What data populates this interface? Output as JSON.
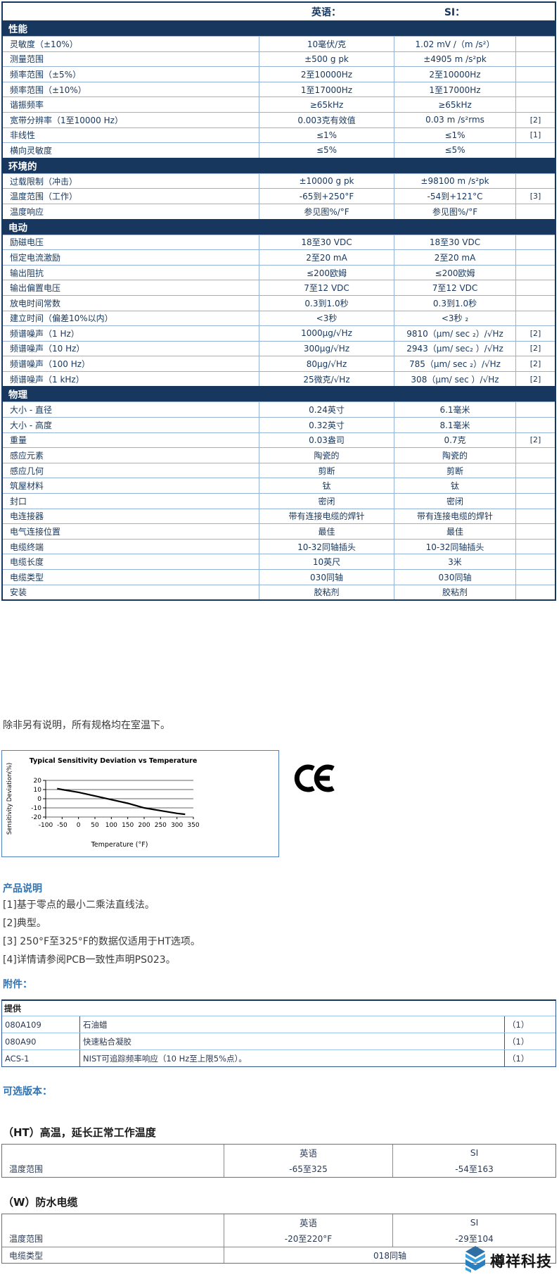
{
  "spec_table": {
    "col_headers": {
      "english": "英语：",
      "si": "SI："
    },
    "sections": [
      {
        "title": "性能",
        "rows": [
          {
            "label": "灵敏度（±10%）",
            "en": "10毫伏/克",
            "si": "1.02 mV /（m /s²）",
            "note": ""
          },
          {
            "label": "测量范围",
            "en": "±500 g pk",
            "si": "±4905 m /s²pk",
            "note": ""
          },
          {
            "label": "频率范围（±5%）",
            "en": "2至10000Hz",
            "si": "2至10000Hz",
            "note": ""
          },
          {
            "label": "频率范围（±10%）",
            "en": "1至17000Hz",
            "si": "1至17000Hz",
            "note": ""
          },
          {
            "label": "谐振频率",
            "en": "≥65kHz",
            "si": "≥65kHz",
            "note": ""
          },
          {
            "label": "宽带分辨率（1至10000 Hz）",
            "en": "0.003克有效值",
            "si": "0.03 m /s²rms",
            "note": "[2]"
          },
          {
            "label": "非线性",
            "en": "≤1%",
            "si": "≤1%",
            "note": "[1]"
          },
          {
            "label": "横向灵敏度",
            "en": "≤5%",
            "si": "≤5%",
            "note": ""
          }
        ]
      },
      {
        "title": "环境的",
        "rows": [
          {
            "label": "过载限制（冲击）",
            "en": "±10000 g pk",
            "si": "±98100 m /s²pk",
            "note": ""
          },
          {
            "label": "温度范围（工作）",
            "en": "-65到+250°F",
            "si": "-54到+121°C",
            "note": "[3]"
          },
          {
            "label": "温度响应",
            "en": "参见图%/°F",
            "si": "参见图%/°F",
            "note": ""
          }
        ]
      },
      {
        "title": "电动",
        "rows": [
          {
            "label": "励磁电压",
            "en": "18至30 VDC",
            "si": "18至30 VDC",
            "note": ""
          },
          {
            "label": "恒定电流激励",
            "en": "2至20 mA",
            "si": "2至20 mA",
            "note": ""
          },
          {
            "label": "输出阻抗",
            "en": "≤200欧姆",
            "si": "≤200欧姆",
            "note": ""
          },
          {
            "label": "输出偏置电压",
            "en": "7至12 VDC",
            "si": "7至12 VDC",
            "note": ""
          },
          {
            "label": "放电时间常数",
            "en": "0.3到1.0秒",
            "si": "0.3到1.0秒",
            "note": ""
          },
          {
            "label": "建立时间（偏差10%以内）",
            "en": "<3秒",
            "si": "<3秒 ₂",
            "note": ""
          },
          {
            "label": "频谱噪声（1 Hz）",
            "en": "1000μg/√Hz",
            "si": "9810（μm/ sec ₂）/√Hz",
            "note": "[2]"
          },
          {
            "label": "频谱噪声（10 Hz）",
            "en": "300μg/√Hz",
            "si": "2943（μm/ sec₂ ）/√Hz",
            "note": "[2]"
          },
          {
            "label": "频谱噪声（100 Hz）",
            "en": "80μg/√Hz",
            "si": "785（μm/ sec ₂）/√Hz",
            "note": "[2]"
          },
          {
            "label": "频谱噪声（1 kHz）",
            "en": "25微克/√Hz",
            "si": "308（μm/ sec ）/√Hz",
            "note": "[2]"
          }
        ]
      },
      {
        "title": "物理",
        "rows": [
          {
            "label": "大小 - 直径",
            "en": "0.24英寸",
            "si": "6.1毫米",
            "note": ""
          },
          {
            "label": "大小 - 高度",
            "en": "0.32英寸",
            "si": "8.1毫米",
            "note": ""
          },
          {
            "label": "重量",
            "en": "0.03盎司",
            "si": "0.7克",
            "note": "[2]"
          },
          {
            "label": "感应元素",
            "en": "陶瓷的",
            "si": "陶瓷的",
            "note": ""
          },
          {
            "label": "感应几何",
            "en": "剪断",
            "si": "剪断",
            "note": ""
          },
          {
            "label": "筑屋材料",
            "en": "钛",
            "si": "钛",
            "note": ""
          },
          {
            "label": "封口",
            "en": "密闭",
            "si": "密闭",
            "note": ""
          },
          {
            "label": "电连接器",
            "en": "带有连接电缆的焊针",
            "si": "带有连接电缆的焊针",
            "note": ""
          },
          {
            "label": "电气连接位置",
            "en": "最佳",
            "si": "最佳",
            "note": ""
          },
          {
            "label": "电缆终端",
            "en": "10-32同轴插头",
            "si": "10-32同轴插头",
            "note": ""
          },
          {
            "label": "电缆长度",
            "en": "10英尺",
            "si": "3米",
            "note": ""
          },
          {
            "label": "电缆类型",
            "en": "030同轴",
            "si": "030同轴",
            "note": ""
          },
          {
            "label": "安装",
            "en": "胶粘剂",
            "si": "胶粘剂",
            "note": ""
          }
        ]
      }
    ]
  },
  "room_temp_note": "除非另有说明，所有规格均在室温下。",
  "chart_data": {
    "type": "line",
    "title": "Typical Sensitivity Deviation vs Temperature",
    "xlabel": "Temperature (°F)",
    "ylabel": "Sensitivity Deviation(%)",
    "x_ticks": [
      -100,
      -50,
      0,
      50,
      100,
      150,
      200,
      250,
      300,
      350
    ],
    "y_ticks": [
      20,
      10,
      0,
      -10,
      -20
    ],
    "xlim": [
      -100,
      350
    ],
    "ylim": [
      -20,
      20
    ],
    "grid": true,
    "line_color": "#000000",
    "points": [
      [
        -65,
        11
      ],
      [
        -50,
        10
      ],
      [
        0,
        7
      ],
      [
        50,
        3
      ],
      [
        100,
        -1
      ],
      [
        150,
        -5
      ],
      [
        200,
        -10
      ],
      [
        250,
        -13
      ],
      [
        300,
        -16
      ],
      [
        325,
        -17
      ]
    ]
  },
  "ce_mark": "CE",
  "product_notes": {
    "title": "产品说明",
    "lines": [
      "[1]基于零点的最小二乘法直线法。",
      "[2]典型。",
      "[3] 250°F至325°F的数据仅适用于HT选项。",
      "[4]详情请参阅PCB一致性声明PS023。"
    ]
  },
  "accessories": {
    "title": "附件：",
    "header": "提供",
    "rows": [
      {
        "model": "080A109",
        "desc": "石油蜡",
        "qty": "（1）"
      },
      {
        "model": "080A90",
        "desc": "快速粘合凝胶",
        "qty": "（1）"
      },
      {
        "model": "ACS-1",
        "desc": "NIST可追踪频率响应（10 Hz至上限5%点）。",
        "qty": "（1）"
      }
    ]
  },
  "optional_versions": {
    "title": "可选版本：",
    "ht": {
      "heading": "（HT）高温，延长正常工作温度",
      "col_headers": {
        "english": "英语",
        "si": "SI"
      },
      "rows": [
        {
          "label": "温度范围",
          "en": "-65至325",
          "si": "-54至163"
        }
      ]
    },
    "w": {
      "heading": "（W）防水电缆",
      "col_headers": {
        "english": "英语",
        "si": "SI"
      },
      "rows": [
        {
          "label": "温度范围",
          "en": "-20至220°F",
          "si": "-29至104"
        },
        {
          "label": "电缆类型",
          "span": "018同轴"
        }
      ]
    }
  },
  "footer": {
    "company": "樽祥科技"
  },
  "colors": {
    "section_bar": "#17375E",
    "row_border": "#95B3D7",
    "heading_blue": "#2E74B5",
    "logo_blue_dark": "#2f6fa3",
    "logo_blue_light": "#3aa0dc"
  }
}
